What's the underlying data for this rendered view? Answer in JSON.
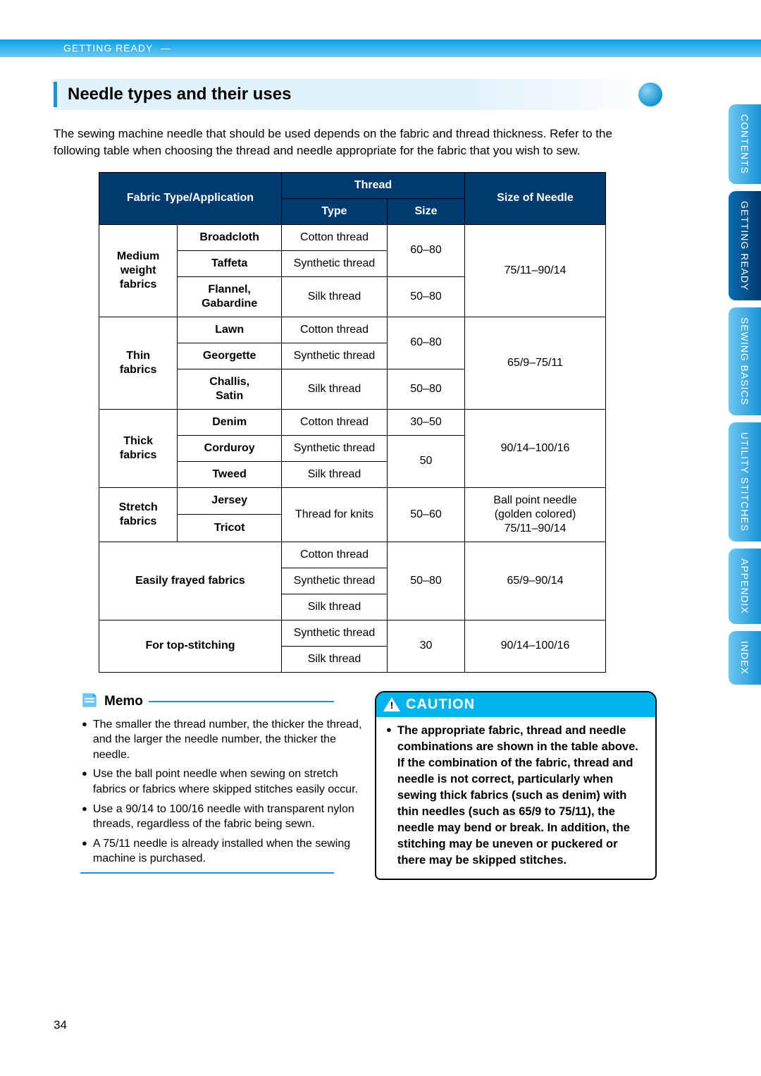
{
  "breadcrumb": "GETTING READY",
  "section_title": "Needle types and their uses",
  "intro": "The sewing machine needle that should be used depends on the fabric and thread thickness. Refer to the following table when choosing the thread and needle appropriate for the fabric that you wish to sew.",
  "table": {
    "headers": {
      "fabric": "Fabric Type/Application",
      "thread": "Thread",
      "thread_type": "Type",
      "thread_size": "Size",
      "needle": "Size of Needle"
    },
    "groups": [
      {
        "label": "Medium weight fabrics",
        "rows": [
          {
            "fabric": "Broadcloth",
            "thread_type": "Cotton thread"
          },
          {
            "fabric": "Taffeta",
            "thread_type": "Synthetic thread"
          },
          {
            "fabric": "Flannel, Gabardine",
            "thread_type": "Silk thread"
          }
        ],
        "size_top": "60–80",
        "size_bottom": "50–80",
        "needle": "75/11–90/14"
      },
      {
        "label": "Thin fabrics",
        "rows": [
          {
            "fabric": "Lawn",
            "thread_type": "Cotton thread"
          },
          {
            "fabric": "Georgette",
            "thread_type": "Synthetic thread"
          },
          {
            "fabric": "Challis, Satin",
            "thread_type": "Silk thread"
          }
        ],
        "size_top": "60–80",
        "size_bottom": "50–80",
        "needle": "65/9–75/11"
      },
      {
        "label": "Thick fabrics",
        "rows": [
          {
            "fabric": "Denim",
            "thread_type": "Cotton thread"
          },
          {
            "fabric": "Corduroy",
            "thread_type": "Synthetic thread"
          },
          {
            "fabric": "Tweed",
            "thread_type": "Silk thread"
          }
        ],
        "size_top": "30–50",
        "size_bottom": "50",
        "needle": "90/14–100/16"
      },
      {
        "label": "Stretch fabrics",
        "rows": [
          {
            "fabric": "Jersey"
          },
          {
            "fabric": "Tricot"
          }
        ],
        "thread_type": "Thread for knits",
        "size": "50–60",
        "needle": "Ball point needle (golden colored) 75/11–90/14"
      },
      {
        "label": "Easily frayed fabrics",
        "span": true,
        "rows": [
          {
            "thread_type": "Cotton thread"
          },
          {
            "thread_type": "Synthetic thread"
          },
          {
            "thread_type": "Silk thread"
          }
        ],
        "size": "50–80",
        "needle": "65/9–90/14"
      },
      {
        "label": "For top-stitching",
        "span": true,
        "rows": [
          {
            "thread_type": "Synthetic thread"
          },
          {
            "thread_type": "Silk thread"
          }
        ],
        "size": "30",
        "needle": "90/14–100/16"
      }
    ]
  },
  "memo": {
    "title": "Memo",
    "items": [
      "The smaller the thread number, the thicker the thread, and the larger the needle number, the thicker the needle.",
      "Use the ball point needle when sewing on stretch fabrics or fabrics where skipped stitches easily occur.",
      "Use a 90/14 to 100/16 needle with transparent nylon threads, regardless of the fabric being sewn.",
      "A 75/11 needle is already installed when the sewing machine is purchased."
    ]
  },
  "caution": {
    "title": "CAUTION",
    "items": [
      "The appropriate fabric, thread and needle combinations are shown in the table above. If the combination of the fabric, thread and needle is not correct, particularly when sewing thick fabrics (such as denim) with thin needles (such as 65/9 to 75/11), the needle may bend or break. In addition, the stitching may be uneven or puckered or there may be skipped stitches."
    ]
  },
  "tabs": [
    {
      "label": "CONTENTS",
      "active": false
    },
    {
      "label": "GETTING READY",
      "active": true
    },
    {
      "label": "SEWING BASICS",
      "active": false
    },
    {
      "label": "UTILITY STITCHES",
      "active": false
    },
    {
      "label": "APPENDIX",
      "active": false
    },
    {
      "label": "INDEX",
      "active": false
    }
  ],
  "page_number": "34",
  "colors": {
    "header_bg": "#003b6f",
    "accent": "#1a93d6",
    "caution_bg": "#00b4ea"
  }
}
